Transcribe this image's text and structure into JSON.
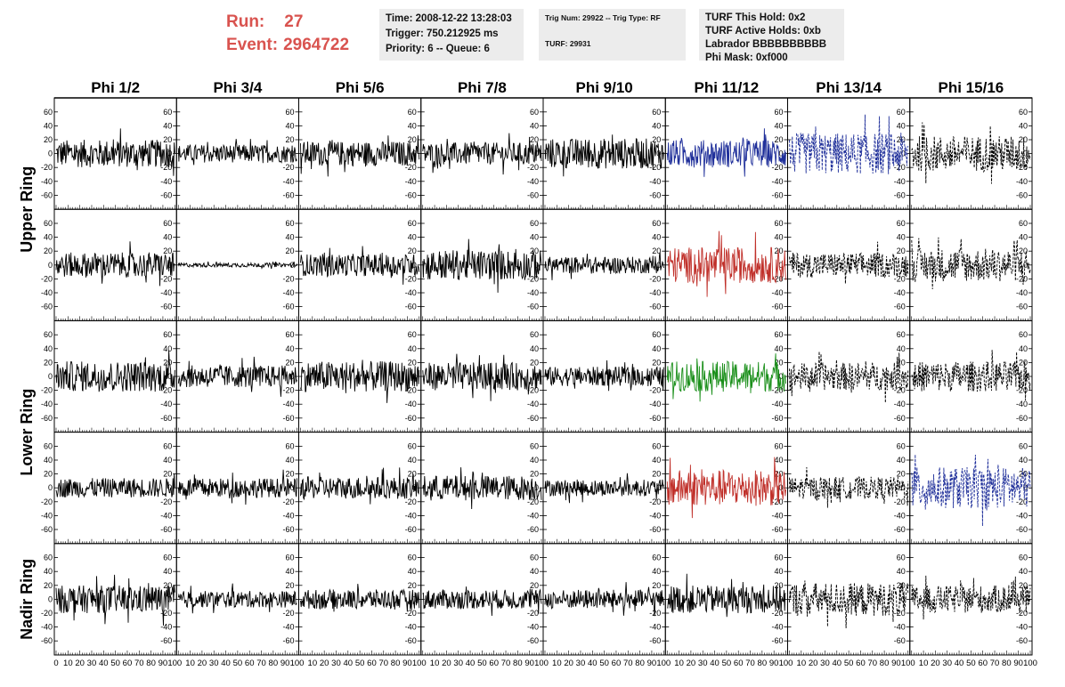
{
  "header": {
    "run_label": "Run:",
    "run_value": "27",
    "event_label": "Event:",
    "event_value": "2964722"
  },
  "time_panel": {
    "time": "Time: 2008-12-22 13:28:03",
    "trigger": "Trigger: 750.212925 ms",
    "priority": "Priority: 6 -- Queue: 6"
  },
  "trig_panel": {
    "trig_num": "Trig Num: 29922 -- Trig Type: RF",
    "turf": "TURF: 29931"
  },
  "turf_panel": {
    "this_hold": "TURF This Hold: 0x2",
    "active_holds": "TURF Active Holds: 0xb",
    "labrador": "Labrador BBBBBBBBBB",
    "phi_mask": "Phi Mask: 0xf000"
  },
  "colors": {
    "run_text": "#d9534f",
    "panel_bg": "#ececec",
    "trace_default": "#000000",
    "trace_blue": "#1f2f9a",
    "trace_red": "#c0302a",
    "trace_green": "#1a8f1a"
  },
  "chart_data": {
    "type": "line",
    "columns": [
      "Phi 1/2",
      "Phi 3/4",
      "Phi 5/6",
      "Phi 7/8",
      "Phi 9/10",
      "Phi 11/12",
      "Phi 13/14",
      "Phi 15/16"
    ],
    "row_labels": [
      "Upper Ring",
      "Lower Ring",
      "Nadir Ring"
    ],
    "row_label_spans": [
      2,
      2,
      1
    ],
    "grid_rows": 5,
    "ylim": [
      -70,
      70
    ],
    "yticks": [
      -60,
      -40,
      -20,
      0,
      20,
      40,
      60
    ],
    "xlim": [
      0,
      100
    ],
    "xticks": [
      0,
      10,
      20,
      30,
      40,
      50,
      60,
      70,
      80,
      90,
      100
    ],
    "panels": [
      {
        "row": 0,
        "col": 0,
        "amp": 20,
        "style": "solid",
        "color": "#000000"
      },
      {
        "row": 0,
        "col": 1,
        "amp": 13,
        "style": "solid",
        "color": "#000000"
      },
      {
        "row": 0,
        "col": 2,
        "amp": 18,
        "style": "solid",
        "color": "#000000"
      },
      {
        "row": 0,
        "col": 3,
        "amp": 16,
        "style": "solid",
        "color": "#000000"
      },
      {
        "row": 0,
        "col": 4,
        "amp": 22,
        "style": "solid",
        "color": "#000000"
      },
      {
        "row": 0,
        "col": 5,
        "amp": 20,
        "style": "solid",
        "color": "#1f2f9a"
      },
      {
        "row": 0,
        "col": 6,
        "amp": 30,
        "style": "dashed",
        "color": "#1f2f9a"
      },
      {
        "row": 0,
        "col": 7,
        "amp": 26,
        "style": "dashed",
        "color": "#000000"
      },
      {
        "row": 1,
        "col": 0,
        "amp": 18,
        "style": "solid",
        "color": "#000000"
      },
      {
        "row": 1,
        "col": 1,
        "amp": 3,
        "style": "solid",
        "color": "#000000"
      },
      {
        "row": 1,
        "col": 2,
        "amp": 16,
        "style": "solid",
        "color": "#000000"
      },
      {
        "row": 1,
        "col": 3,
        "amp": 22,
        "style": "solid",
        "color": "#000000"
      },
      {
        "row": 1,
        "col": 4,
        "amp": 12,
        "style": "solid",
        "color": "#000000"
      },
      {
        "row": 1,
        "col": 5,
        "amp": 26,
        "style": "solid",
        "color": "#c0302a"
      },
      {
        "row": 1,
        "col": 6,
        "amp": 18,
        "style": "dashed",
        "color": "#000000"
      },
      {
        "row": 1,
        "col": 7,
        "amp": 24,
        "style": "dashed",
        "color": "#000000"
      },
      {
        "row": 2,
        "col": 0,
        "amp": 22,
        "style": "solid",
        "color": "#000000"
      },
      {
        "row": 2,
        "col": 1,
        "amp": 16,
        "style": "solid",
        "color": "#000000"
      },
      {
        "row": 2,
        "col": 2,
        "amp": 22,
        "style": "solid",
        "color": "#000000"
      },
      {
        "row": 2,
        "col": 3,
        "amp": 20,
        "style": "solid",
        "color": "#000000"
      },
      {
        "row": 2,
        "col": 4,
        "amp": 14,
        "style": "solid",
        "color": "#000000"
      },
      {
        "row": 2,
        "col": 5,
        "amp": 22,
        "style": "solid",
        "color": "#1a8f1a"
      },
      {
        "row": 2,
        "col": 6,
        "amp": 20,
        "style": "dashed",
        "color": "#000000"
      },
      {
        "row": 2,
        "col": 7,
        "amp": 22,
        "style": "dashed",
        "color": "#000000"
      },
      {
        "row": 3,
        "col": 0,
        "amp": 14,
        "style": "solid",
        "color": "#000000"
      },
      {
        "row": 3,
        "col": 1,
        "amp": 14,
        "style": "solid",
        "color": "#000000"
      },
      {
        "row": 3,
        "col": 2,
        "amp": 16,
        "style": "solid",
        "color": "#000000"
      },
      {
        "row": 3,
        "col": 3,
        "amp": 18,
        "style": "solid",
        "color": "#000000"
      },
      {
        "row": 3,
        "col": 4,
        "amp": 12,
        "style": "solid",
        "color": "#000000"
      },
      {
        "row": 3,
        "col": 5,
        "amp": 26,
        "style": "solid",
        "color": "#c0302a"
      },
      {
        "row": 3,
        "col": 6,
        "amp": 16,
        "style": "dashed",
        "color": "#000000"
      },
      {
        "row": 3,
        "col": 7,
        "amp": 30,
        "style": "dashed",
        "color": "#1f2f9a"
      },
      {
        "row": 4,
        "col": 0,
        "amp": 20,
        "style": "solid",
        "color": "#000000"
      },
      {
        "row": 4,
        "col": 1,
        "amp": 12,
        "style": "solid",
        "color": "#000000"
      },
      {
        "row": 4,
        "col": 2,
        "amp": 14,
        "style": "solid",
        "color": "#000000"
      },
      {
        "row": 4,
        "col": 3,
        "amp": 14,
        "style": "solid",
        "color": "#000000"
      },
      {
        "row": 4,
        "col": 4,
        "amp": 14,
        "style": "solid",
        "color": "#000000"
      },
      {
        "row": 4,
        "col": 5,
        "amp": 20,
        "style": "solid",
        "color": "#000000"
      },
      {
        "row": 4,
        "col": 6,
        "amp": 24,
        "style": "dashed",
        "color": "#000000"
      },
      {
        "row": 4,
        "col": 7,
        "amp": 20,
        "style": "dashed",
        "color": "#000000"
      }
    ]
  }
}
